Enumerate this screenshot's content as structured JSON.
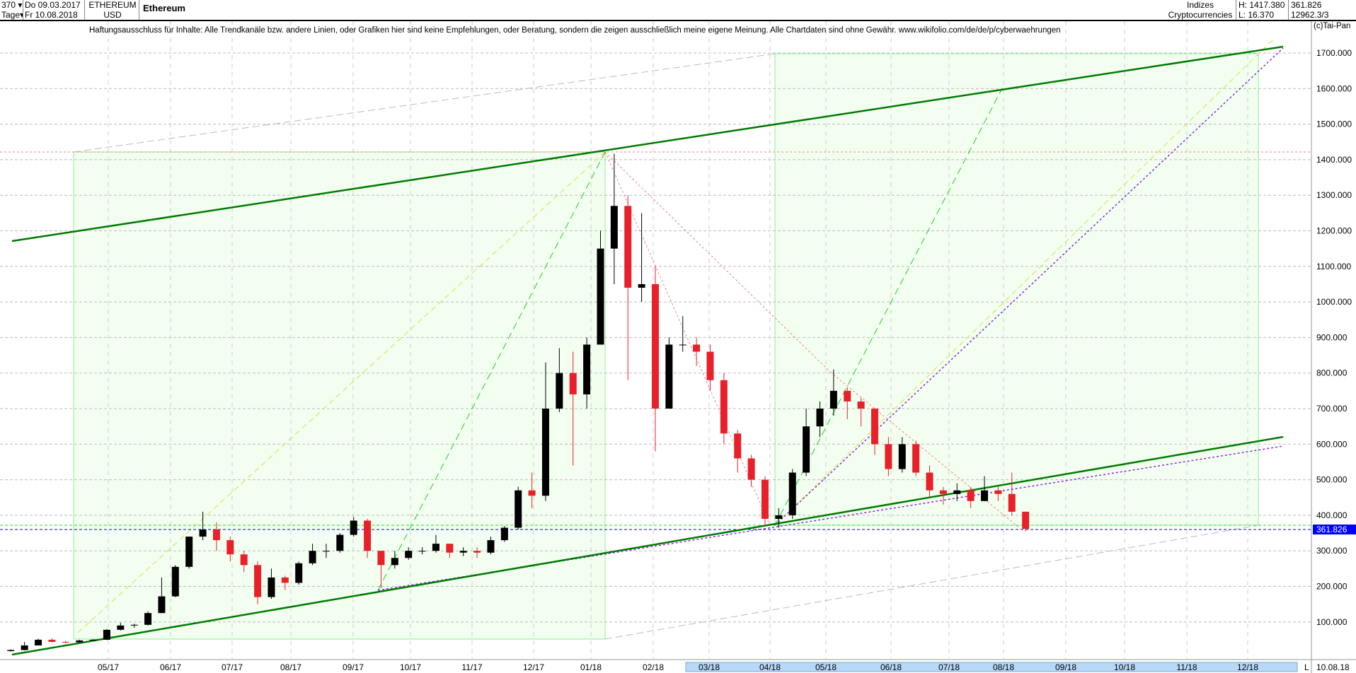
{
  "header": {
    "period_count": "370",
    "period_unit": "Tage",
    "date_from": "Do 09.03.2017",
    "date_to": "Fr 10.08.2018",
    "symbol": "ETHEREUM",
    "currency": "USD",
    "name": "Ethereum",
    "category1": "Indizes",
    "category2": "Cryptocurrencies",
    "high": "H: 1417.380",
    "low": "L: 16.370",
    "last": "361.826",
    "volume_info": "12962.3/3"
  },
  "disclaimer": "Haftungsausschluss für Inhalte: Alle Trendkanäle bzw. andere Linien, oder Grafiken hier sind keine Empfehlungen, oder Beratung, sondern die zeigen ausschließlich meine eigene Meinung. Alle Chartdaten sind ohne Gewähr.  www.wikifolio.com/de/de/p/cyberwaehrungen",
  "copyright": "(c)Tai-Pan",
  "colors": {
    "up": "#000000",
    "down": "#e8202a",
    "channel": "#007a00",
    "box": "#90ee90",
    "last_price": "#0000ff"
  },
  "chart_data": {
    "type": "candlestick",
    "title": "Ethereum",
    "ylim": [
      0,
      1750
    ],
    "y_ticks": [
      "100.000",
      "200.000",
      "300.000",
      "400.000",
      "500.000",
      "600.000",
      "700.000",
      "800.000",
      "900.000",
      "1000.000",
      "1100.000",
      "1200.000",
      "1300.000",
      "1400.000",
      "1500.000",
      "1600.000",
      "1700.000"
    ],
    "x_ticks": [
      "05/17",
      "06/17",
      "07/17",
      "08/17",
      "09/17",
      "10/17",
      "11/17",
      "12/17",
      "01/18",
      "02/18",
      "03/18",
      "04/18",
      "05/18",
      "06/18",
      "07/18",
      "08/18",
      "09/18",
      "10/18",
      "11/18",
      "12/18"
    ],
    "x_end_label": "10.08.18",
    "x_end_marker": "L",
    "last_price_label": "361.826",
    "grid": true,
    "ohlc": [
      [
        "2017-03-09",
        18,
        23,
        17,
        21
      ],
      [
        "2017-03-16",
        21,
        44,
        20,
        34
      ],
      [
        "2017-03-23",
        34,
        53,
        34,
        50
      ],
      [
        "2017-03-30",
        50,
        54,
        42,
        44
      ],
      [
        "2017-04-06",
        44,
        47,
        40,
        43
      ],
      [
        "2017-04-13",
        43,
        50,
        42,
        48
      ],
      [
        "2017-04-20",
        48,
        52,
        46,
        50
      ],
      [
        "2017-04-27",
        50,
        80,
        49,
        78
      ],
      [
        "2017-05-04",
        78,
        98,
        76,
        90
      ],
      [
        "2017-05-11",
        90,
        95,
        84,
        92
      ],
      [
        "2017-05-18",
        92,
        130,
        90,
        125
      ],
      [
        "2017-05-25",
        125,
        225,
        125,
        172
      ],
      [
        "2017-06-01",
        172,
        260,
        170,
        255
      ],
      [
        "2017-06-08",
        255,
        340,
        250,
        340
      ],
      [
        "2017-06-15",
        340,
        410,
        330,
        360
      ],
      [
        "2017-06-22",
        360,
        380,
        300,
        330
      ],
      [
        "2017-06-29",
        330,
        340,
        270,
        290
      ],
      [
        "2017-07-06",
        290,
        300,
        240,
        260
      ],
      [
        "2017-07-13",
        260,
        270,
        150,
        170
      ],
      [
        "2017-07-20",
        170,
        250,
        165,
        225
      ],
      [
        "2017-07-27",
        225,
        230,
        190,
        210
      ],
      [
        "2017-08-03",
        210,
        270,
        205,
        265
      ],
      [
        "2017-08-10",
        265,
        320,
        260,
        300
      ],
      [
        "2017-08-17",
        300,
        320,
        280,
        300
      ],
      [
        "2017-08-24",
        300,
        350,
        295,
        345
      ],
      [
        "2017-08-31",
        345,
        395,
        340,
        385
      ],
      [
        "2017-09-07",
        385,
        390,
        280,
        300
      ],
      [
        "2017-09-14",
        300,
        300,
        195,
        260
      ],
      [
        "2017-09-21",
        260,
        300,
        250,
        280
      ],
      [
        "2017-09-28",
        280,
        310,
        275,
        300
      ],
      [
        "2017-10-05",
        300,
        310,
        290,
        300
      ],
      [
        "2017-10-12",
        300,
        345,
        295,
        320
      ],
      [
        "2017-10-19",
        320,
        320,
        280,
        295
      ],
      [
        "2017-10-26",
        295,
        310,
        285,
        300
      ],
      [
        "2017-11-02",
        300,
        310,
        280,
        295
      ],
      [
        "2017-11-09",
        295,
        340,
        290,
        330
      ],
      [
        "2017-11-16",
        330,
        370,
        325,
        365
      ],
      [
        "2017-11-23",
        365,
        480,
        360,
        470
      ],
      [
        "2017-11-30",
        470,
        520,
        420,
        455
      ],
      [
        "2017-12-07",
        455,
        830,
        440,
        700
      ],
      [
        "2017-12-14",
        700,
        870,
        690,
        800
      ],
      [
        "2017-12-21",
        800,
        860,
        540,
        740
      ],
      [
        "2017-12-28",
        740,
        900,
        700,
        880
      ],
      [
        "2018-01-04",
        880,
        1200,
        880,
        1150
      ],
      [
        "2018-01-11",
        1150,
        1417,
        1050,
        1270
      ],
      [
        "2018-01-18",
        1270,
        1300,
        780,
        1040
      ],
      [
        "2018-01-25",
        1040,
        1250,
        1000,
        1050
      ],
      [
        "2018-02-01",
        1050,
        1100,
        580,
        700
      ],
      [
        "2018-02-08",
        700,
        900,
        700,
        880
      ],
      [
        "2018-02-15",
        880,
        960,
        860,
        880
      ],
      [
        "2018-02-22",
        880,
        900,
        820,
        860
      ],
      [
        "2018-03-01",
        860,
        880,
        750,
        780
      ],
      [
        "2018-03-08",
        780,
        800,
        600,
        630
      ],
      [
        "2018-03-15",
        630,
        640,
        520,
        560
      ],
      [
        "2018-03-22",
        560,
        570,
        480,
        500
      ],
      [
        "2018-03-29",
        500,
        510,
        370,
        390
      ],
      [
        "2018-04-05",
        390,
        420,
        365,
        400
      ],
      [
        "2018-04-12",
        400,
        530,
        390,
        520
      ],
      [
        "2018-04-19",
        520,
        700,
        510,
        650
      ],
      [
        "2018-04-26",
        650,
        720,
        620,
        700
      ],
      [
        "2018-05-03",
        700,
        810,
        680,
        750
      ],
      [
        "2018-05-10",
        750,
        760,
        670,
        720
      ],
      [
        "2018-05-17",
        720,
        730,
        650,
        700
      ],
      [
        "2018-05-24",
        700,
        700,
        570,
        600
      ],
      [
        "2018-05-31",
        600,
        620,
        510,
        530
      ],
      [
        "2018-06-07",
        530,
        620,
        520,
        600
      ],
      [
        "2018-06-14",
        600,
        610,
        510,
        520
      ],
      [
        "2018-06-21",
        520,
        540,
        450,
        470
      ],
      [
        "2018-06-28",
        470,
        480,
        430,
        460
      ],
      [
        "2018-07-05",
        460,
        490,
        440,
        470
      ],
      [
        "2018-07-12",
        470,
        480,
        420,
        440
      ],
      [
        "2018-07-19",
        440,
        510,
        440,
        470
      ],
      [
        "2018-07-26",
        470,
        480,
        440,
        460
      ],
      [
        "2018-08-02",
        460,
        520,
        400,
        410
      ],
      [
        "2018-08-09",
        410,
        410,
        355,
        361.826
      ]
    ]
  }
}
